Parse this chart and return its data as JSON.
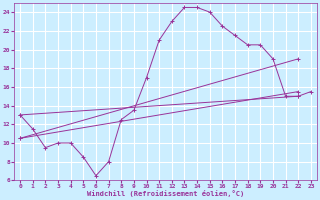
{
  "bg_color": "#cceeff",
  "grid_color": "#ffffff",
  "line_color": "#993399",
  "xlabel": "Windchill (Refroidissement éolien,°C)",
  "xlim": [
    -0.5,
    23.5
  ],
  "ylim": [
    6,
    25
  ],
  "yticks": [
    6,
    8,
    10,
    12,
    14,
    16,
    18,
    20,
    22,
    24
  ],
  "xticks": [
    0,
    1,
    2,
    3,
    4,
    5,
    6,
    7,
    8,
    9,
    10,
    11,
    12,
    13,
    14,
    15,
    16,
    17,
    18,
    19,
    20,
    21,
    22,
    23
  ],
  "curve1_x": [
    0,
    1,
    2,
    3,
    4,
    5,
    6,
    7,
    8,
    9,
    10,
    11,
    12,
    13,
    14,
    15,
    16,
    17,
    18,
    19,
    20,
    21,
    22,
    23
  ],
  "curve1_y": [
    13.0,
    11.5,
    9.5,
    10.0,
    10.0,
    8.5,
    6.5,
    8.0,
    12.5,
    13.5,
    17.0,
    21.0,
    23.0,
    24.5,
    24.5,
    24.0,
    22.5,
    21.5,
    20.5,
    20.5,
    19.0,
    15.0,
    15.0,
    15.5
  ],
  "line1_x": [
    0,
    22
  ],
  "line1_y": [
    10.5,
    15.5
  ],
  "line2_x": [
    0,
    22
  ],
  "line2_y": [
    10.5,
    19.0
  ],
  "line3_x": [
    0,
    22
  ],
  "line3_y": [
    13.0,
    15.0
  ]
}
